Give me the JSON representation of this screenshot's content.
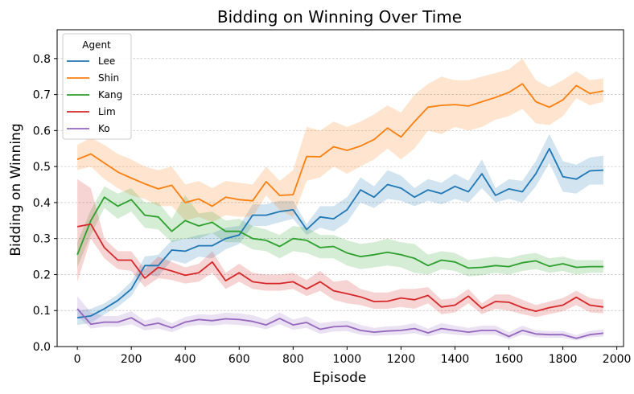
{
  "chart_data": {
    "type": "line",
    "title": "Bidding on Winning Over Time",
    "xlabel": "Episode",
    "ylabel": "Bidding on Winning",
    "xlim": [
      -75,
      2025
    ],
    "ylim": [
      0,
      0.88
    ],
    "xticks": [
      0,
      200,
      400,
      600,
      800,
      1000,
      1200,
      1400,
      1600,
      1800,
      2000
    ],
    "yticks": [
      0.0,
      0.1,
      0.2,
      0.3,
      0.4,
      0.5,
      0.6,
      0.7,
      0.8
    ],
    "grid": "y-dashed",
    "legend": {
      "title": "Agent",
      "placement": "top-left"
    },
    "x": [
      0,
      50,
      100,
      150,
      200,
      250,
      300,
      350,
      400,
      450,
      500,
      550,
      600,
      650,
      700,
      750,
      800,
      850,
      900,
      950,
      1000,
      1050,
      1100,
      1150,
      1200,
      1250,
      1300,
      1350,
      1400,
      1450,
      1500,
      1550,
      1600,
      1650,
      1700,
      1750,
      1800,
      1850,
      1900,
      1950
    ],
    "series": [
      {
        "name": "Lee",
        "color": "#1f77b4",
        "values": [
          0.08,
          0.085,
          0.105,
          0.128,
          0.16,
          0.225,
          0.225,
          0.268,
          0.265,
          0.28,
          0.28,
          0.3,
          0.31,
          0.365,
          0.365,
          0.375,
          0.38,
          0.325,
          0.36,
          0.355,
          0.38,
          0.435,
          0.415,
          0.45,
          0.44,
          0.415,
          0.435,
          0.425,
          0.445,
          0.43,
          0.48,
          0.42,
          0.438,
          0.43,
          0.48,
          0.55,
          0.472,
          0.465,
          0.488,
          0.49
        ],
        "lower": [
          0.06,
          0.065,
          0.09,
          0.11,
          0.14,
          0.2,
          0.195,
          0.24,
          0.23,
          0.25,
          0.245,
          0.27,
          0.285,
          0.335,
          0.335,
          0.345,
          0.355,
          0.31,
          0.33,
          0.32,
          0.345,
          0.4,
          0.385,
          0.41,
          0.405,
          0.39,
          0.405,
          0.395,
          0.41,
          0.4,
          0.44,
          0.4,
          0.41,
          0.4,
          0.445,
          0.51,
          0.43,
          0.425,
          0.45,
          0.45
        ],
        "upper": [
          0.1,
          0.105,
          0.12,
          0.145,
          0.18,
          0.25,
          0.255,
          0.295,
          0.3,
          0.31,
          0.315,
          0.33,
          0.335,
          0.395,
          0.395,
          0.405,
          0.405,
          0.34,
          0.39,
          0.39,
          0.415,
          0.47,
          0.445,
          0.49,
          0.475,
          0.44,
          0.465,
          0.455,
          0.48,
          0.46,
          0.52,
          0.44,
          0.465,
          0.46,
          0.515,
          0.59,
          0.515,
          0.505,
          0.525,
          0.53
        ]
      },
      {
        "name": "Shin",
        "color": "#ff7f0e",
        "values": [
          0.52,
          0.535,
          0.51,
          0.485,
          0.468,
          0.452,
          0.438,
          0.448,
          0.4,
          0.41,
          0.39,
          0.415,
          0.408,
          0.405,
          0.458,
          0.42,
          0.422,
          0.528,
          0.527,
          0.555,
          0.545,
          0.557,
          0.575,
          0.607,
          0.582,
          0.625,
          0.665,
          0.67,
          0.672,
          0.668,
          0.68,
          0.692,
          0.706,
          0.73,
          0.68,
          0.665,
          0.685,
          0.725,
          0.703,
          0.71
        ],
        "lower": [
          0.49,
          0.5,
          0.465,
          0.44,
          0.42,
          0.41,
          0.39,
          0.39,
          0.35,
          0.36,
          0.345,
          0.365,
          0.36,
          0.36,
          0.42,
          0.38,
          0.36,
          0.46,
          0.47,
          0.5,
          0.48,
          0.5,
          0.52,
          0.55,
          0.52,
          0.55,
          0.6,
          0.59,
          0.61,
          0.6,
          0.61,
          0.63,
          0.64,
          0.66,
          0.62,
          0.615,
          0.64,
          0.69,
          0.67,
          0.68
        ],
        "upper": [
          0.56,
          0.58,
          0.56,
          0.535,
          0.52,
          0.5,
          0.49,
          0.5,
          0.45,
          0.46,
          0.44,
          0.46,
          0.455,
          0.45,
          0.5,
          0.46,
          0.49,
          0.61,
          0.6,
          0.625,
          0.61,
          0.625,
          0.645,
          0.67,
          0.65,
          0.7,
          0.73,
          0.75,
          0.74,
          0.74,
          0.75,
          0.76,
          0.77,
          0.8,
          0.74,
          0.72,
          0.74,
          0.765,
          0.74,
          0.745
        ]
      },
      {
        "name": "Kang",
        "color": "#2ca02c",
        "values": [
          0.255,
          0.35,
          0.415,
          0.39,
          0.408,
          0.365,
          0.36,
          0.32,
          0.35,
          0.335,
          0.345,
          0.32,
          0.32,
          0.3,
          0.295,
          0.278,
          0.3,
          0.295,
          0.275,
          0.278,
          0.26,
          0.25,
          0.255,
          0.262,
          0.255,
          0.245,
          0.225,
          0.24,
          0.235,
          0.218,
          0.22,
          0.225,
          0.222,
          0.233,
          0.238,
          0.223,
          0.23,
          0.22,
          0.222,
          0.222
        ],
        "lower": [
          0.22,
          0.31,
          0.385,
          0.355,
          0.375,
          0.33,
          0.325,
          0.29,
          0.3,
          0.3,
          0.315,
          0.29,
          0.29,
          0.27,
          0.265,
          0.245,
          0.265,
          0.26,
          0.245,
          0.245,
          0.225,
          0.215,
          0.22,
          0.225,
          0.22,
          0.205,
          0.2,
          0.215,
          0.21,
          0.195,
          0.198,
          0.205,
          0.2,
          0.21,
          0.215,
          0.205,
          0.21,
          0.2,
          0.205,
          0.205
        ],
        "upper": [
          0.29,
          0.38,
          0.445,
          0.425,
          0.44,
          0.4,
          0.4,
          0.355,
          0.42,
          0.37,
          0.375,
          0.35,
          0.355,
          0.335,
          0.325,
          0.31,
          0.335,
          0.33,
          0.31,
          0.31,
          0.295,
          0.285,
          0.29,
          0.3,
          0.29,
          0.285,
          0.255,
          0.265,
          0.26,
          0.24,
          0.245,
          0.25,
          0.245,
          0.255,
          0.26,
          0.245,
          0.25,
          0.24,
          0.24,
          0.24
        ]
      },
      {
        "name": "Lim",
        "color": "#d62728",
        "values": [
          0.333,
          0.34,
          0.275,
          0.24,
          0.24,
          0.19,
          0.22,
          0.21,
          0.198,
          0.205,
          0.235,
          0.183,
          0.205,
          0.18,
          0.175,
          0.175,
          0.18,
          0.16,
          0.18,
          0.155,
          0.147,
          0.138,
          0.125,
          0.126,
          0.135,
          0.13,
          0.142,
          0.11,
          0.115,
          0.14,
          0.106,
          0.125,
          0.123,
          0.108,
          0.098,
          0.108,
          0.115,
          0.137,
          0.115,
          0.11
        ],
        "lower": [
          0.18,
          0.3,
          0.245,
          0.215,
          0.21,
          0.165,
          0.19,
          0.185,
          0.175,
          0.18,
          0.205,
          0.16,
          0.18,
          0.16,
          0.155,
          0.155,
          0.16,
          0.14,
          0.155,
          0.13,
          0.12,
          0.115,
          0.105,
          0.105,
          0.11,
          0.105,
          0.12,
          0.09,
          0.095,
          0.12,
          0.09,
          0.105,
          0.1,
          0.09,
          0.082,
          0.09,
          0.098,
          0.115,
          0.095,
          0.092
        ],
        "upper": [
          0.465,
          0.44,
          0.3,
          0.265,
          0.265,
          0.215,
          0.25,
          0.235,
          0.22,
          0.23,
          0.265,
          0.205,
          0.23,
          0.205,
          0.2,
          0.2,
          0.205,
          0.185,
          0.21,
          0.18,
          0.185,
          0.16,
          0.15,
          0.15,
          0.16,
          0.16,
          0.165,
          0.13,
          0.135,
          0.16,
          0.12,
          0.145,
          0.145,
          0.13,
          0.115,
          0.125,
          0.135,
          0.155,
          0.135,
          0.13
        ]
      },
      {
        "name": "Ko",
        "color": "#9467bd",
        "values": [
          0.105,
          0.062,
          0.068,
          0.068,
          0.08,
          0.058,
          0.065,
          0.052,
          0.068,
          0.075,
          0.072,
          0.077,
          0.075,
          0.07,
          0.06,
          0.078,
          0.06,
          0.067,
          0.048,
          0.055,
          0.057,
          0.045,
          0.04,
          0.043,
          0.045,
          0.05,
          0.038,
          0.05,
          0.045,
          0.04,
          0.045,
          0.045,
          0.028,
          0.045,
          0.035,
          0.033,
          0.033,
          0.023,
          0.033,
          0.037
        ],
        "lower": [
          0.085,
          0.05,
          0.055,
          0.055,
          0.062,
          0.045,
          0.05,
          0.04,
          0.055,
          0.06,
          0.058,
          0.062,
          0.06,
          0.056,
          0.048,
          0.062,
          0.047,
          0.052,
          0.035,
          0.042,
          0.043,
          0.033,
          0.03,
          0.032,
          0.033,
          0.037,
          0.028,
          0.037,
          0.033,
          0.03,
          0.033,
          0.033,
          0.02,
          0.033,
          0.026,
          0.024,
          0.024,
          0.017,
          0.025,
          0.028
        ],
        "upper": [
          0.14,
          0.095,
          0.085,
          0.085,
          0.098,
          0.072,
          0.082,
          0.065,
          0.082,
          0.09,
          0.088,
          0.094,
          0.092,
          0.087,
          0.075,
          0.095,
          0.075,
          0.084,
          0.065,
          0.07,
          0.072,
          0.06,
          0.052,
          0.056,
          0.058,
          0.065,
          0.05,
          0.065,
          0.058,
          0.052,
          0.058,
          0.058,
          0.04,
          0.058,
          0.045,
          0.043,
          0.043,
          0.032,
          0.043,
          0.048
        ]
      }
    ]
  }
}
